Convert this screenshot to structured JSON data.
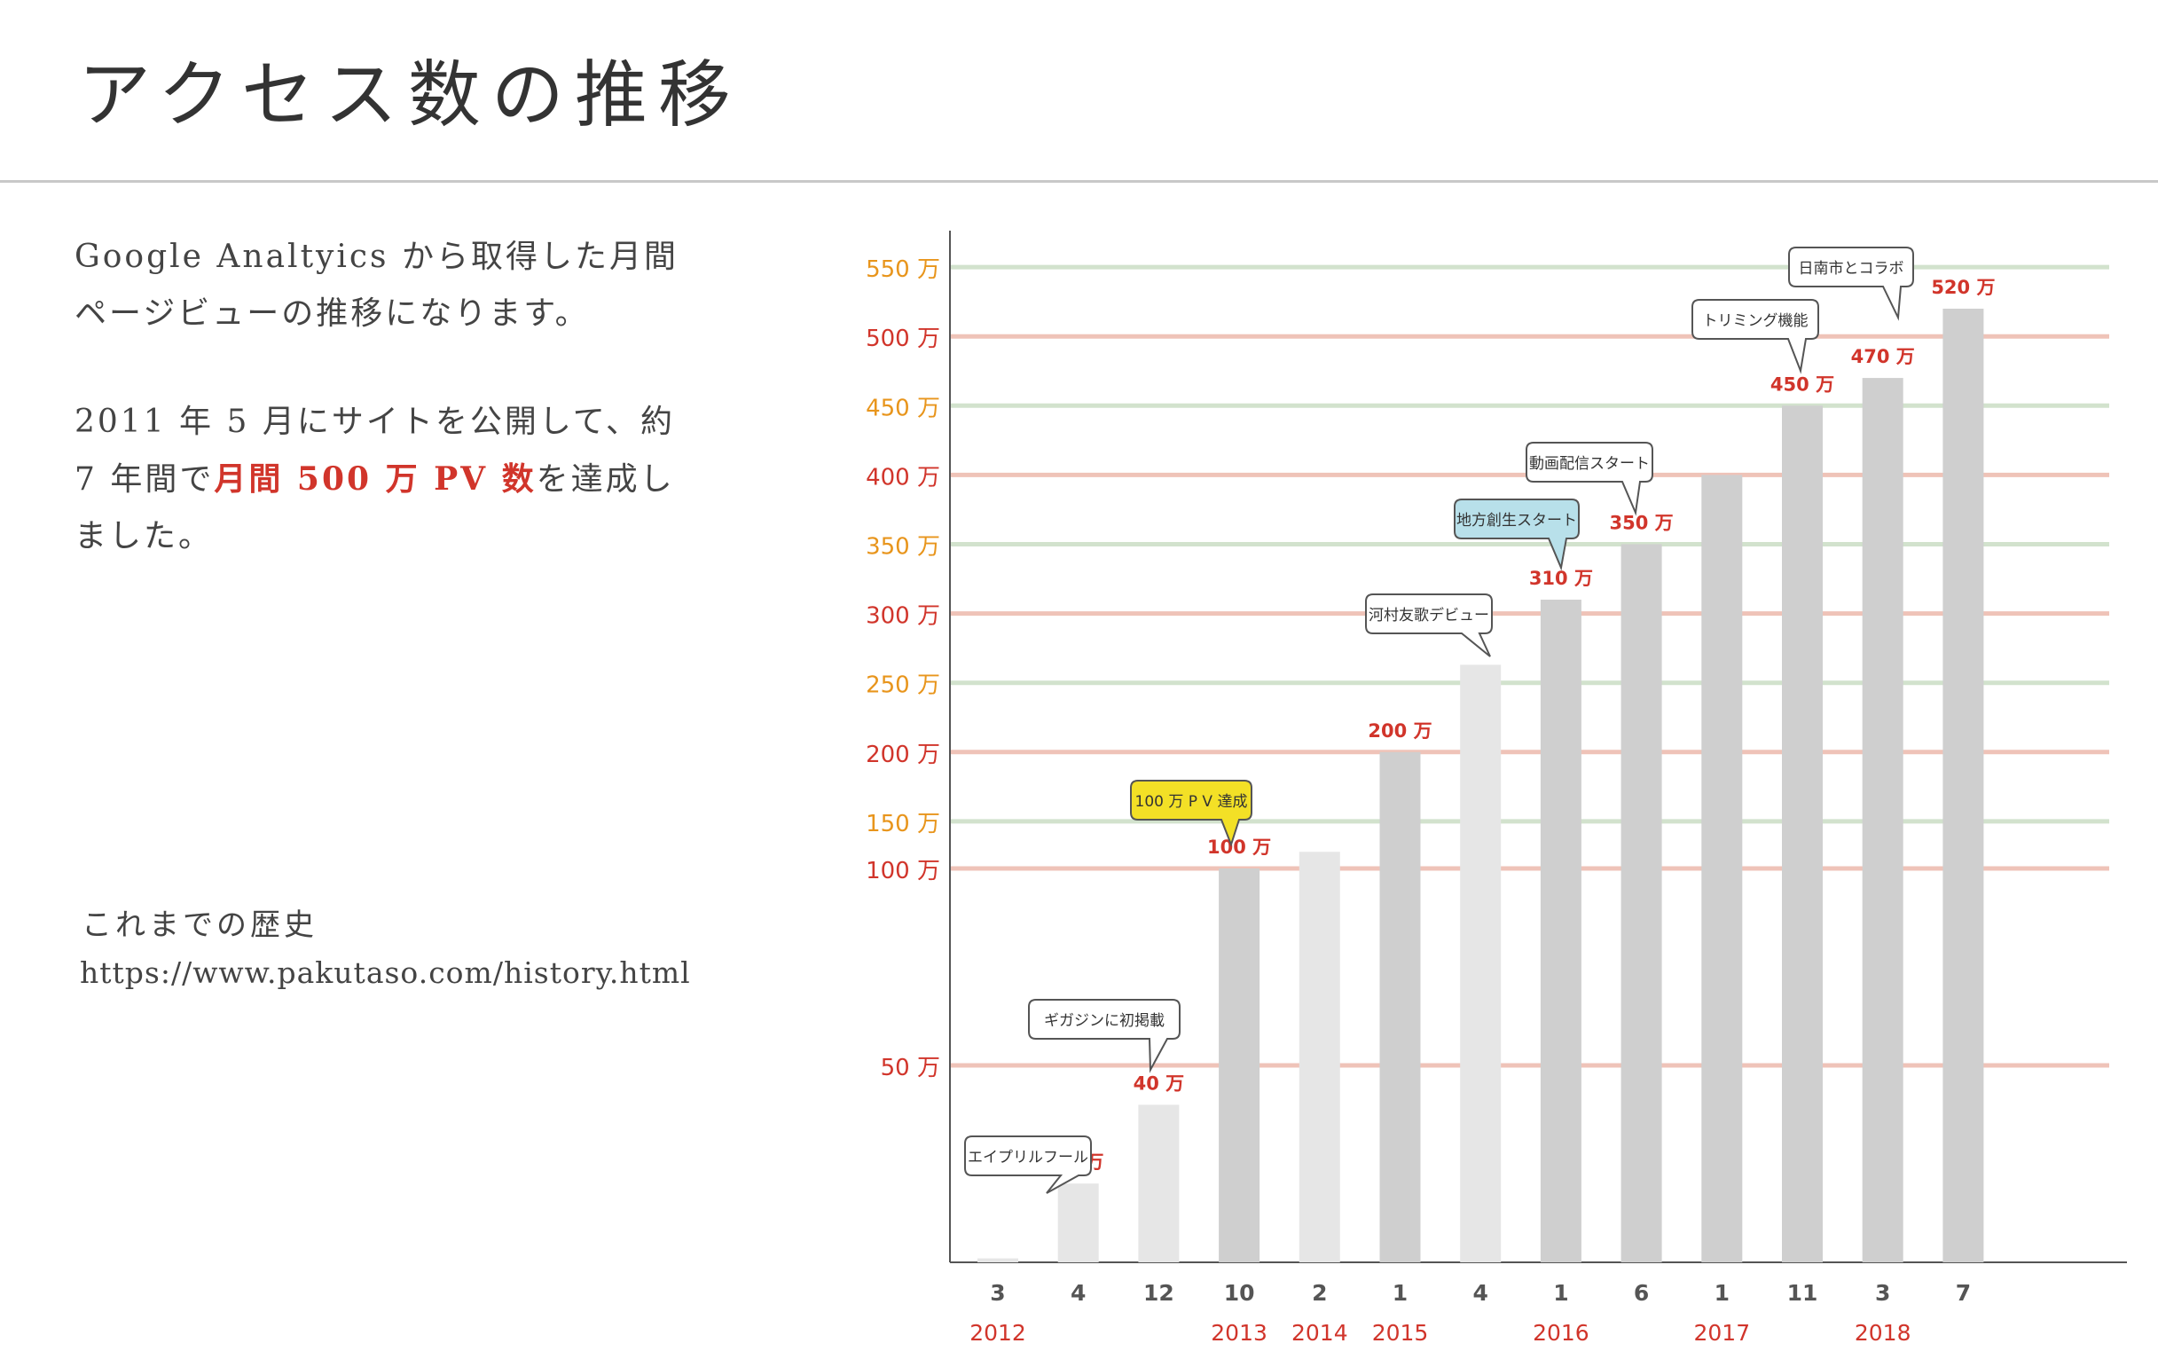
{
  "page": {
    "title": "アクセス数の推移",
    "description_1": "Google Analtyics から取得した月間ページビューの推移になります。",
    "description_2_before": "2011 年 5 月にサイトを公開して、約 7 年間で",
    "description_2_highlight": "月間 500 万 PV 数",
    "description_2_after": "を達成しました。",
    "history_label": "これまでの歴史",
    "history_url": "https://www.pakutaso.com/history.html"
  },
  "colors": {
    "accent_red": "#d1352b",
    "accent_orange": "#e8951c",
    "grid_red": "#efc3b8",
    "grid_green": "#d2e2cd",
    "bar_light": "#e6e6e6",
    "bar_dark": "#cfcfcf",
    "callout_yellow": "#f3e026",
    "callout_blue": "#b8e0ea"
  },
  "chart_data": {
    "type": "bar",
    "title": "",
    "xlabel": "",
    "ylabel": "",
    "unit": "万",
    "ylim": [
      0,
      570
    ],
    "grid": true,
    "y_ticks": [
      {
        "value": 50,
        "label": "50 万",
        "color": "red"
      },
      {
        "value": 100,
        "label": "100 万",
        "color": "red"
      },
      {
        "value": 150,
        "label": "150 万",
        "color": "orange"
      },
      {
        "value": 200,
        "label": "200 万",
        "color": "red"
      },
      {
        "value": 250,
        "label": "250 万",
        "color": "orange"
      },
      {
        "value": 300,
        "label": "300 万",
        "color": "red"
      },
      {
        "value": 350,
        "label": "350 万",
        "color": "orange"
      },
      {
        "value": 400,
        "label": "400 万",
        "color": "red"
      },
      {
        "value": 450,
        "label": "450 万",
        "color": "orange"
      },
      {
        "value": 500,
        "label": "500 万",
        "color": "red"
      },
      {
        "value": 550,
        "label": "550 万",
        "color": "orange"
      }
    ],
    "bars": [
      {
        "month": "3",
        "year": "2012",
        "value": 1,
        "shade": "light",
        "label": "",
        "note": "エイプリルフール"
      },
      {
        "month": "4",
        "year": "",
        "value": 20,
        "shade": "light",
        "label": "20 万",
        "note": ""
      },
      {
        "month": "12",
        "year": "",
        "value": 40,
        "shade": "light",
        "label": "40 万",
        "note": "ギガジンに初掲載"
      },
      {
        "month": "10",
        "year": "2013",
        "value": 100,
        "shade": "dark",
        "label": "100 万",
        "note": "100 万 P V 達成"
      },
      {
        "month": "2",
        "year": "2014",
        "value": 128,
        "shade": "light",
        "label": "",
        "note": ""
      },
      {
        "month": "1",
        "year": "2015",
        "value": 200,
        "shade": "dark",
        "label": "200 万",
        "note": ""
      },
      {
        "month": "4",
        "year": "",
        "value": 263,
        "shade": "light",
        "label": "",
        "note": "河村友歌デビュー"
      },
      {
        "month": "1",
        "year": "2016",
        "value": 310,
        "shade": "dark",
        "label": "310 万",
        "note": "地方創生スタート"
      },
      {
        "month": "6",
        "year": "",
        "value": 350,
        "shade": "dark",
        "label": "350 万",
        "note": "動画配信スタート"
      },
      {
        "month": "1",
        "year": "2017",
        "value": 400,
        "shade": "dark",
        "label": "",
        "note": ""
      },
      {
        "month": "11",
        "year": "",
        "value": 450,
        "shade": "dark",
        "label": "450 万",
        "note": "トリミング機能"
      },
      {
        "month": "3",
        "year": "2018",
        "value": 470,
        "shade": "dark",
        "label": "470 万",
        "note": "日南市とコラボ"
      },
      {
        "month": "7",
        "year": "",
        "value": 520,
        "shade": "dark",
        "label": "520 万",
        "note": ""
      }
    ]
  }
}
